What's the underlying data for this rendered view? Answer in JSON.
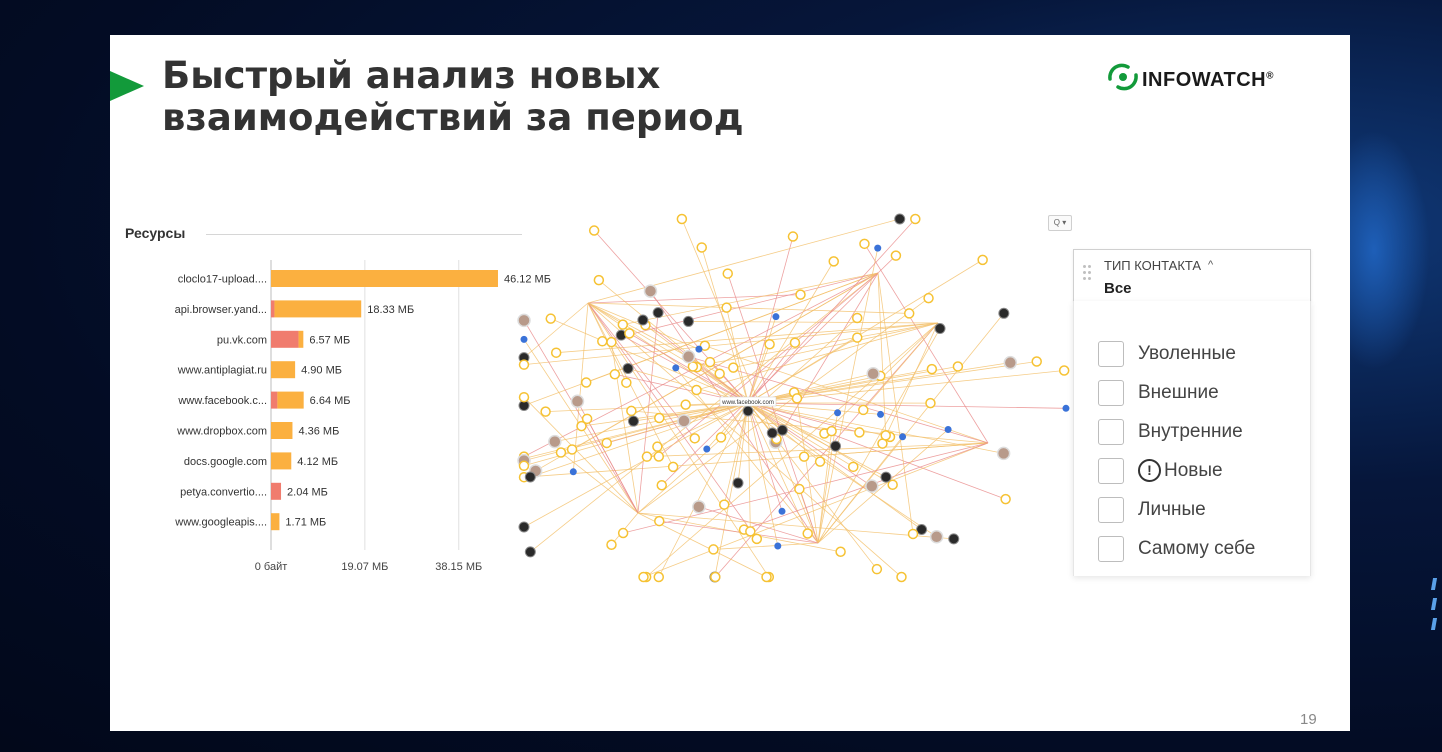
{
  "slide": {
    "title": "Быстрый анализ новых взаимодействий за период",
    "logo_text": "INFOWATCH",
    "page_number": "19",
    "accent_color": "#129a3a"
  },
  "resources": {
    "title": "Ресурсы",
    "zoom_control": "Q ▾",
    "chart_data": {
      "type": "bar",
      "orientation": "horizontal",
      "categories": [
        "cloclo17-upload....",
        "api.browser.yand...",
        "pu.vk.com",
        "www.antiplagiat.ru",
        "www.facebook.c...",
        "www.dropbox.com",
        "docs.google.com",
        "petya.convertio....",
        "www.googleapis...."
      ],
      "value_labels": [
        "46.12 МБ",
        "18.33 МБ",
        "6.57 МБ",
        "4.90 МБ",
        "6.64 МБ",
        "4.36 МБ",
        "4.12 МБ",
        "2.04 МБ",
        "1.71 МБ"
      ],
      "series": [
        {
          "values": [
            0,
            0.7,
            5.6,
            0,
            1.3,
            0,
            0,
            2.04,
            0
          ],
          "color": "#f07c6e"
        },
        {
          "values": [
            46.12,
            17.63,
            0.97,
            4.9,
            5.34,
            4.36,
            4.12,
            0,
            1.71
          ],
          "color": "#fbb040"
        }
      ],
      "x_ticks": [
        "0 байт",
        "19.07 МБ",
        "38.15 МБ"
      ],
      "xlim": [
        0,
        51.0
      ],
      "unit": "МБ"
    }
  },
  "filter": {
    "label": "ТИП КОНТАКТА",
    "chevron": "^",
    "value": "Все",
    "options": [
      {
        "label": "Уволенные",
        "warn_icon": false
      },
      {
        "label": "Внешние",
        "warn_icon": false
      },
      {
        "label": "Внутренние",
        "warn_icon": false
      },
      {
        "label": "Новые",
        "warn_icon": true
      },
      {
        "label": "Личные",
        "warn_icon": false
      },
      {
        "label": "Самому себе",
        "warn_icon": false
      }
    ]
  },
  "graph": {
    "center_label": "www.facebook.com",
    "node_colors": {
      "resource": "#f6c233",
      "contact": "#3a72d8",
      "external": "#2a2a2a",
      "person": "#b89a8a"
    },
    "edge_colors": {
      "normal": "#f3c06a",
      "new": "#e98a8a"
    }
  }
}
